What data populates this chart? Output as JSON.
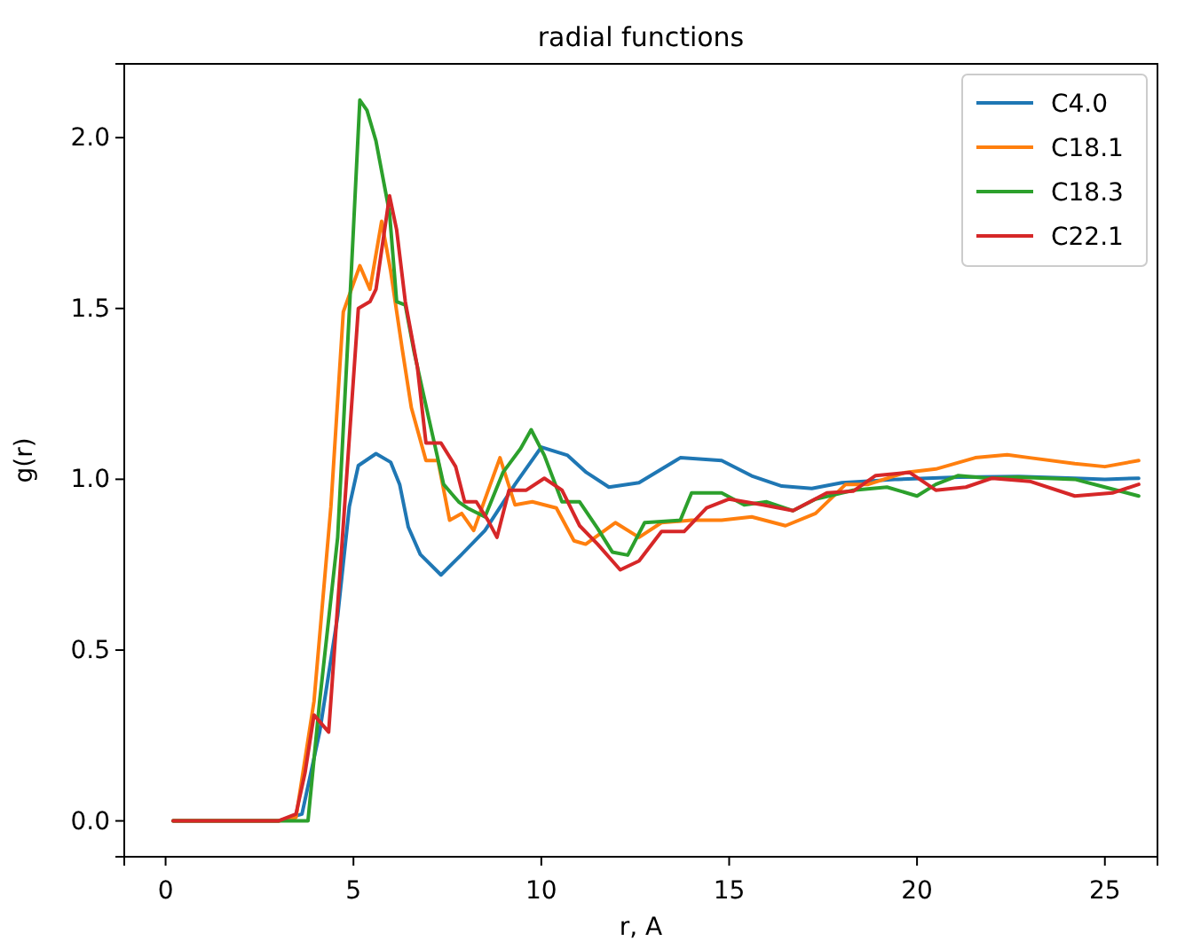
{
  "chart_data": {
    "type": "line",
    "title": "radial functions",
    "xlabel": "r, A",
    "ylabel": "g(r)",
    "xlim": [
      -1.1,
      26.4
    ],
    "ylim": [
      -0.105,
      2.216
    ],
    "xticks": [
      0,
      5,
      10,
      15,
      20,
      25
    ],
    "yticks": [
      {
        "value": 0,
        "label": "0.0"
      },
      {
        "value": 0.5,
        "label": "0.5"
      },
      {
        "value": 1,
        "label": "1.0"
      },
      {
        "value": 1.5,
        "label": "1.5"
      },
      {
        "value": 2,
        "label": "2.0"
      }
    ],
    "legend": "top right",
    "grid": false,
    "series": [
      {
        "name": "C4.0",
        "color": "#1f77b4",
        "x": [
          0.2,
          3.0,
          3.63,
          4.1,
          4.58,
          4.89,
          5.13,
          5.6,
          5.99,
          6.23,
          6.46,
          6.78,
          7.33,
          7.88,
          8.5,
          9.3,
          10.0,
          10.7,
          11.2,
          11.8,
          12.6,
          13.7,
          14.8,
          15.6,
          16.4,
          17.2,
          18.0,
          19.5,
          21.1,
          22.7,
          24.2,
          25.0,
          25.9
        ],
        "values": [
          0,
          0,
          0.02,
          0.26,
          0.6,
          0.92,
          1.04,
          1.075,
          1.05,
          0.985,
          0.86,
          0.78,
          0.72,
          0.78,
          0.85,
          0.985,
          1.094,
          1.07,
          1.02,
          0.977,
          0.99,
          1.063,
          1.055,
          1.01,
          0.98,
          0.973,
          0.99,
          1.0,
          1.006,
          1.008,
          1.003,
          1.0,
          1.003
        ]
      },
      {
        "name": "C18.1",
        "color": "#ff7f0e",
        "x": [
          0.2,
          3.0,
          3.47,
          3.95,
          4.4,
          4.73,
          5.17,
          5.44,
          5.75,
          5.99,
          6.3,
          6.54,
          6.93,
          7.25,
          7.56,
          7.88,
          8.2,
          8.9,
          9.3,
          9.76,
          10.4,
          10.87,
          11.18,
          11.97,
          12.6,
          13.2,
          14.0,
          14.8,
          15.6,
          16.5,
          17.3,
          18.1,
          18.7,
          19.7,
          20.5,
          21.55,
          22.4,
          23.0,
          24.2,
          25.0,
          25.9
        ],
        "values": [
          0,
          0,
          0.01,
          0.35,
          0.92,
          1.49,
          1.625,
          1.556,
          1.755,
          1.61,
          1.38,
          1.21,
          1.055,
          1.055,
          0.88,
          0.9,
          0.85,
          1.063,
          0.925,
          0.934,
          0.916,
          0.82,
          0.81,
          0.873,
          0.83,
          0.873,
          0.88,
          0.88,
          0.89,
          0.864,
          0.9,
          0.985,
          0.985,
          1.02,
          1.03,
          1.063,
          1.072,
          1.063,
          1.046,
          1.037,
          1.055
        ]
      },
      {
        "name": "C18.3",
        "color": "#2ca02c",
        "x": [
          0.2,
          3.0,
          3.79,
          4.1,
          4.58,
          4.89,
          5.17,
          5.36,
          5.6,
          5.96,
          6.15,
          6.38,
          6.62,
          7.01,
          7.4,
          7.8,
          8.03,
          8.5,
          8.98,
          9.45,
          9.73,
          10.08,
          10.55,
          11.02,
          11.5,
          11.89,
          12.3,
          12.75,
          13.7,
          14.0,
          14.8,
          15.4,
          16.0,
          16.7,
          17.3,
          18.3,
          19.2,
          20.0,
          20.5,
          21.1,
          21.9,
          22.7,
          24.2,
          25.0,
          25.9
        ],
        "values": [
          0,
          0,
          0,
          0.35,
          0.83,
          1.49,
          2.11,
          2.08,
          1.99,
          1.78,
          1.52,
          1.51,
          1.37,
          1.176,
          0.985,
          0.934,
          0.916,
          0.89,
          1.02,
          1.09,
          1.145,
          1.07,
          0.934,
          0.934,
          0.856,
          0.787,
          0.778,
          0.873,
          0.88,
          0.96,
          0.96,
          0.925,
          0.934,
          0.908,
          0.942,
          0.968,
          0.977,
          0.951,
          0.985,
          1.011,
          1.003,
          1.006,
          1.0,
          0.977,
          0.951
        ]
      },
      {
        "name": "C22.1",
        "color": "#d62728",
        "x": [
          0.2,
          3.0,
          3.47,
          3.71,
          3.95,
          4.34,
          4.65,
          5.13,
          5.44,
          5.6,
          5.96,
          6.15,
          6.38,
          6.7,
          6.93,
          7.33,
          7.72,
          7.96,
          8.27,
          8.58,
          8.82,
          9.14,
          9.6,
          10.08,
          10.55,
          11.02,
          11.5,
          12.1,
          12.6,
          13.2,
          13.8,
          14.4,
          15.0,
          15.9,
          16.7,
          17.6,
          18.3,
          18.9,
          19.8,
          20.5,
          21.3,
          22.0,
          23.0,
          24.2,
          25.2,
          25.9
        ],
        "values": [
          0,
          0,
          0.02,
          0.14,
          0.31,
          0.26,
          0.74,
          1.5,
          1.52,
          1.556,
          1.83,
          1.73,
          1.52,
          1.33,
          1.106,
          1.106,
          1.037,
          0.934,
          0.934,
          0.88,
          0.83,
          0.968,
          0.968,
          1.003,
          0.968,
          0.864,
          0.81,
          0.735,
          0.761,
          0.847,
          0.847,
          0.916,
          0.942,
          0.925,
          0.908,
          0.96,
          0.965,
          1.011,
          1.02,
          0.968,
          0.977,
          1.003,
          0.994,
          0.951,
          0.96,
          0.985
        ]
      }
    ]
  }
}
